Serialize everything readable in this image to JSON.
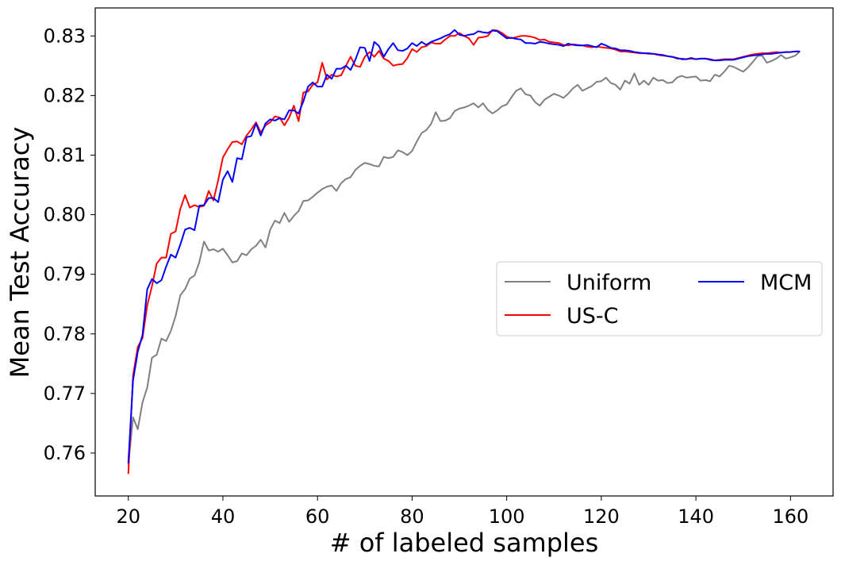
{
  "chart_data": {
    "type": "line",
    "title": "",
    "xlabel": "# of labeled samples",
    "ylabel": "Mean Test Accuracy",
    "xlim": [
      13,
      169
    ],
    "ylim": [
      0.7528,
      0.8347
    ],
    "xticks": [
      20,
      40,
      60,
      80,
      100,
      120,
      140,
      160
    ],
    "yticks": [
      0.76,
      0.77,
      0.78,
      0.79,
      0.8,
      0.81,
      0.82,
      0.83
    ],
    "xtick_labels": [
      "20",
      "40",
      "60",
      "80",
      "100",
      "120",
      "140",
      "160"
    ],
    "ytick_labels": [
      "0.76",
      "0.77",
      "0.78",
      "0.79",
      "0.80",
      "0.81",
      "0.82",
      "0.83"
    ],
    "grid": false,
    "legend": {
      "location": "center-right",
      "columns": 2
    },
    "series": [
      {
        "name": "Uniform",
        "color": "#808080",
        "x": [
          20,
          21,
          22,
          23,
          24,
          25,
          26,
          27,
          28,
          29,
          30,
          31,
          32,
          33,
          34,
          35,
          36,
          37,
          38,
          39,
          40,
          41,
          42,
          43,
          44,
          45,
          46,
          47,
          48,
          49,
          50,
          51,
          52,
          53,
          54,
          55,
          56,
          57,
          58,
          59,
          60,
          61,
          62,
          63,
          64,
          65,
          66,
          67,
          68,
          69,
          70,
          71,
          72,
          73,
          74,
          75,
          76,
          77,
          78,
          79,
          80,
          81,
          82,
          83,
          84,
          85,
          86,
          87,
          88,
          89,
          90,
          91,
          92,
          93,
          94,
          95,
          96,
          97,
          98,
          99,
          100,
          101,
          102,
          103,
          104,
          105,
          106,
          107,
          108,
          109,
          110,
          111,
          112,
          113,
          114,
          115,
          116,
          117,
          118,
          119,
          120,
          121,
          122,
          123,
          124,
          125,
          126,
          127,
          128,
          129,
          130,
          131,
          132,
          133,
          134,
          135,
          136,
          137,
          138,
          139,
          140,
          141,
          142,
          143,
          144,
          145,
          146,
          147,
          148,
          149,
          150,
          151,
          152,
          153,
          154,
          155,
          156,
          157,
          158,
          159,
          160,
          161,
          162
        ],
        "values": [
          0.758,
          0.766,
          0.764,
          0.7685,
          0.771,
          0.776,
          0.7765,
          0.7792,
          0.7788,
          0.7805,
          0.783,
          0.7865,
          0.7875,
          0.7893,
          0.7898,
          0.792,
          0.7955,
          0.794,
          0.7942,
          0.7938,
          0.7943,
          0.7932,
          0.792,
          0.7922,
          0.7935,
          0.7932,
          0.7942,
          0.7948,
          0.7958,
          0.7945,
          0.7975,
          0.799,
          0.7986,
          0.8003,
          0.7988,
          0.7998,
          0.8006,
          0.8023,
          0.8024,
          0.803,
          0.8037,
          0.8043,
          0.8047,
          0.8049,
          0.804,
          0.8053,
          0.806,
          0.8063,
          0.8075,
          0.8082,
          0.8087,
          0.8085,
          0.8082,
          0.8081,
          0.8097,
          0.8095,
          0.8097,
          0.8108,
          0.8105,
          0.81,
          0.8107,
          0.8123,
          0.8137,
          0.8142,
          0.8152,
          0.8172,
          0.8157,
          0.8158,
          0.8162,
          0.8174,
          0.8178,
          0.818,
          0.8183,
          0.8187,
          0.818,
          0.8187,
          0.8176,
          0.817,
          0.8175,
          0.8182,
          0.8185,
          0.8197,
          0.8208,
          0.8212,
          0.8202,
          0.82,
          0.8189,
          0.8183,
          0.8193,
          0.8198,
          0.8203,
          0.82,
          0.8196,
          0.8203,
          0.8212,
          0.8218,
          0.8208,
          0.8212,
          0.8216,
          0.8223,
          0.8224,
          0.823,
          0.8221,
          0.8218,
          0.821,
          0.8225,
          0.822,
          0.8237,
          0.8218,
          0.8225,
          0.8218,
          0.823,
          0.8225,
          0.8226,
          0.8221,
          0.8222,
          0.823,
          0.8233,
          0.823,
          0.8231,
          0.8232,
          0.8225,
          0.8226,
          0.8224,
          0.8235,
          0.8232,
          0.824,
          0.825,
          0.8248,
          0.8244,
          0.824,
          0.8247,
          0.8256,
          0.8266,
          0.8267,
          0.8255,
          0.8258,
          0.8262,
          0.8268,
          0.8262,
          0.8264,
          0.8267,
          0.8274
        ]
      },
      {
        "name": "US-C",
        "color": "#ff0000",
        "x": [
          20,
          21,
          22,
          23,
          24,
          25,
          26,
          27,
          28,
          29,
          30,
          31,
          32,
          33,
          34,
          35,
          36,
          37,
          38,
          39,
          40,
          41,
          42,
          43,
          44,
          45,
          46,
          47,
          48,
          49,
          50,
          51,
          52,
          53,
          54,
          55,
          56,
          57,
          58,
          59,
          60,
          61,
          62,
          63,
          64,
          65,
          66,
          67,
          68,
          69,
          70,
          71,
          72,
          73,
          74,
          75,
          76,
          77,
          78,
          79,
          80,
          81,
          82,
          83,
          84,
          85,
          86,
          87,
          88,
          89,
          90,
          91,
          92,
          93,
          94,
          95,
          96,
          97,
          98,
          99,
          100,
          101,
          102,
          103,
          104,
          105,
          106,
          107,
          108,
          109,
          110,
          111,
          112,
          113,
          114,
          115,
          116,
          117,
          118,
          119,
          120,
          121,
          122,
          123,
          124,
          125,
          126,
          127,
          128,
          129,
          130,
          131,
          132,
          133,
          134,
          135,
          136,
          137,
          138,
          139,
          140,
          141,
          142,
          143,
          144,
          145,
          146,
          147,
          148,
          149,
          150,
          151,
          152,
          153,
          154,
          155,
          156,
          157,
          158,
          159,
          160,
          161,
          162
        ],
        "values": [
          0.7565,
          0.773,
          0.7778,
          0.7793,
          0.7848,
          0.788,
          0.7918,
          0.7928,
          0.7928,
          0.7968,
          0.7972,
          0.801,
          0.8033,
          0.8012,
          0.8016,
          0.8013,
          0.8015,
          0.804,
          0.8024,
          0.8058,
          0.8096,
          0.811,
          0.8122,
          0.8123,
          0.8118,
          0.8133,
          0.8143,
          0.8155,
          0.8138,
          0.815,
          0.8155,
          0.8165,
          0.8163,
          0.815,
          0.8163,
          0.8183,
          0.8157,
          0.8205,
          0.8207,
          0.8218,
          0.8222,
          0.8255,
          0.8227,
          0.8235,
          0.8232,
          0.8234,
          0.825,
          0.8265,
          0.825,
          0.8248,
          0.8265,
          0.8273,
          0.8265,
          0.8275,
          0.8262,
          0.8258,
          0.825,
          0.8252,
          0.8253,
          0.8263,
          0.8278,
          0.8273,
          0.8281,
          0.8283,
          0.8289,
          0.8287,
          0.8287,
          0.8294,
          0.83,
          0.83,
          0.8305,
          0.83,
          0.8296,
          0.8285,
          0.8297,
          0.8298,
          0.83,
          0.831,
          0.8309,
          0.8305,
          0.8299,
          0.8296,
          0.8298,
          0.83,
          0.83,
          0.8299,
          0.8297,
          0.8293,
          0.8294,
          0.829,
          0.8289,
          0.8288,
          0.8285,
          0.8284,
          0.8286,
          0.8285,
          0.8284,
          0.8282,
          0.8281,
          0.8282,
          0.8281,
          0.828,
          0.8279,
          0.8277,
          0.8274,
          0.8274,
          0.8273,
          0.8272,
          0.8271,
          0.8271,
          0.827,
          0.827,
          0.8268,
          0.8267,
          0.8266,
          0.8265,
          0.8262,
          0.8262,
          0.8261,
          0.8262,
          0.8261,
          0.8262,
          0.8262,
          0.8261,
          0.8259,
          0.826,
          0.8261,
          0.8261,
          0.8261,
          0.8263,
          0.8265,
          0.8267,
          0.8269,
          0.827,
          0.8271,
          0.8271,
          0.8272,
          0.8273,
          0.8272,
          0.8273,
          0.8273,
          0.8274,
          0.8274
        ]
      },
      {
        "name": "MCM",
        "color": "#0000ff",
        "x": [
          20,
          21,
          22,
          23,
          24,
          25,
          26,
          27,
          28,
          29,
          30,
          31,
          32,
          33,
          34,
          35,
          36,
          37,
          38,
          39,
          40,
          41,
          42,
          43,
          44,
          45,
          46,
          47,
          48,
          49,
          50,
          51,
          52,
          53,
          54,
          55,
          56,
          57,
          58,
          59,
          60,
          61,
          62,
          63,
          64,
          65,
          66,
          67,
          68,
          69,
          70,
          71,
          72,
          73,
          74,
          75,
          76,
          77,
          78,
          79,
          80,
          81,
          82,
          83,
          84,
          85,
          86,
          87,
          88,
          89,
          90,
          91,
          92,
          93,
          94,
          95,
          96,
          97,
          98,
          99,
          100,
          101,
          102,
          103,
          104,
          105,
          106,
          107,
          108,
          109,
          110,
          111,
          112,
          113,
          114,
          115,
          116,
          117,
          118,
          119,
          120,
          121,
          122,
          123,
          124,
          125,
          126,
          127,
          128,
          129,
          130,
          131,
          132,
          133,
          134,
          135,
          136,
          137,
          138,
          139,
          140,
          141,
          142,
          143,
          144,
          145,
          146,
          147,
          148,
          149,
          150,
          151,
          152,
          153,
          154,
          155,
          156,
          157,
          158,
          159,
          160,
          161,
          162
        ],
        "values": [
          0.7583,
          0.7722,
          0.777,
          0.7798,
          0.7875,
          0.7892,
          0.7885,
          0.789,
          0.7913,
          0.7933,
          0.7928,
          0.795,
          0.7975,
          0.7978,
          0.7974,
          0.8015,
          0.8016,
          0.8028,
          0.8028,
          0.8021,
          0.8059,
          0.8073,
          0.8055,
          0.8095,
          0.8093,
          0.813,
          0.8132,
          0.8153,
          0.8133,
          0.8153,
          0.816,
          0.8158,
          0.8162,
          0.816,
          0.8175,
          0.8175,
          0.817,
          0.819,
          0.8215,
          0.8222,
          0.8215,
          0.8215,
          0.8235,
          0.8228,
          0.8245,
          0.8245,
          0.825,
          0.8243,
          0.826,
          0.8281,
          0.828,
          0.8258,
          0.829,
          0.8283,
          0.8265,
          0.8278,
          0.8288,
          0.8276,
          0.8275,
          0.8279,
          0.8288,
          0.8283,
          0.829,
          0.8285,
          0.829,
          0.8293,
          0.8296,
          0.83,
          0.8303,
          0.831,
          0.8302,
          0.83,
          0.8302,
          0.8303,
          0.8308,
          0.8306,
          0.8305,
          0.8309,
          0.8308,
          0.8302,
          0.8296,
          0.8297,
          0.8295,
          0.8294,
          0.8288,
          0.8288,
          0.8287,
          0.829,
          0.8289,
          0.8287,
          0.8286,
          0.8285,
          0.8283,
          0.8287,
          0.8285,
          0.8284,
          0.8284,
          0.8285,
          0.8283,
          0.8281,
          0.8287,
          0.8284,
          0.828,
          0.8279,
          0.8276,
          0.8276,
          0.8275,
          0.8273,
          0.8272,
          0.8271,
          0.8271,
          0.827,
          0.8269,
          0.8268,
          0.8266,
          0.8265,
          0.8263,
          0.8261,
          0.8261,
          0.8263,
          0.8261,
          0.8262,
          0.8262,
          0.826,
          0.8259,
          0.8259,
          0.826,
          0.826,
          0.826,
          0.8262,
          0.8264,
          0.8266,
          0.8267,
          0.8268,
          0.8269,
          0.827,
          0.827,
          0.8271,
          0.8272,
          0.8273,
          0.8273,
          0.8274,
          0.8274
        ]
      }
    ]
  }
}
